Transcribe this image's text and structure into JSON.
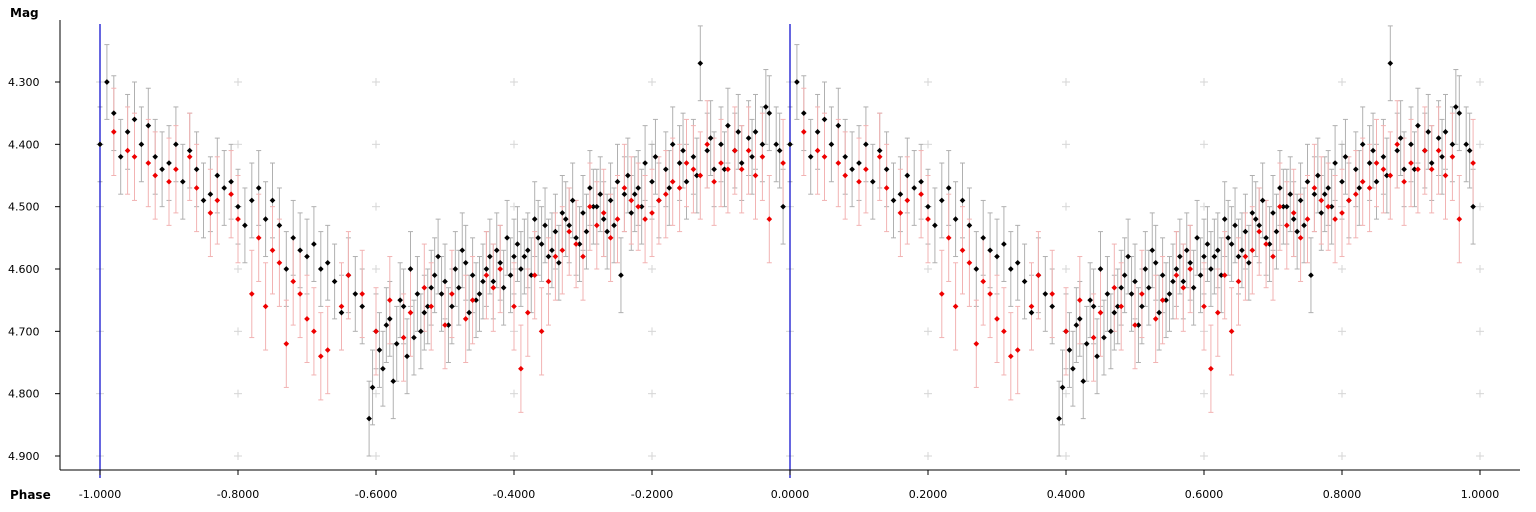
{
  "chart_data": {
    "type": "scatter",
    "title": "",
    "xlabel": "Phase",
    "ylabel": "Mag",
    "xlim": [
      -1.0,
      1.0
    ],
    "ylim": [
      4.9,
      4.3
    ],
    "y_inverted": true,
    "x_ticks": [
      "-1.0000",
      "-0.8000",
      "-0.6000",
      "-0.4000",
      "-0.2000",
      "0.0000",
      "0.2000",
      "0.4000",
      "0.6000",
      "0.8000",
      "1.0000"
    ],
    "y_ticks": [
      "4.300",
      "4.400",
      "4.500",
      "4.600",
      "4.700",
      "4.800",
      "4.900"
    ],
    "grid": "dotted crosses",
    "legend": "none",
    "vertical_markers": [
      -1.0,
      0.0
    ],
    "marker_color": "#0000cc",
    "error_bars": true,
    "series": [
      {
        "color": "#000000",
        "errorbar_color": "#b0b0b0",
        "points": [
          [
            0.0,
            4.4,
            0.06
          ],
          [
            0.02,
            4.35,
            0.06
          ],
          [
            0.04,
            4.38,
            0.06
          ],
          [
            0.06,
            4.4,
            0.06
          ],
          [
            0.08,
            4.42,
            0.06
          ],
          [
            0.1,
            4.43,
            0.06
          ],
          [
            0.12,
            4.46,
            0.06
          ],
          [
            0.14,
            4.44,
            0.06
          ],
          [
            0.16,
            4.48,
            0.06
          ],
          [
            0.18,
            4.47,
            0.06
          ],
          [
            0.2,
            4.5,
            0.06
          ],
          [
            0.22,
            4.49,
            0.06
          ],
          [
            0.24,
            4.52,
            0.06
          ],
          [
            0.26,
            4.53,
            0.06
          ],
          [
            0.28,
            4.55,
            0.06
          ],
          [
            0.3,
            4.58,
            0.06
          ],
          [
            0.32,
            4.6,
            0.06
          ],
          [
            0.34,
            4.62,
            0.06
          ],
          [
            0.36,
            4.61,
            0.06
          ],
          [
            0.38,
            4.66,
            0.06
          ],
          [
            0.4,
            4.7,
            0.06
          ],
          [
            0.42,
            4.68,
            0.06
          ],
          [
            0.44,
            4.66,
            0.06
          ],
          [
            0.46,
            4.64,
            0.06
          ],
          [
            0.48,
            4.63,
            0.06
          ],
          [
            0.5,
            4.62,
            0.06
          ],
          [
            0.52,
            4.63,
            0.06
          ],
          [
            0.54,
            4.61,
            0.06
          ],
          [
            0.56,
            4.6,
            0.06
          ],
          [
            0.58,
            4.59,
            0.06
          ],
          [
            0.6,
            4.58,
            0.06
          ],
          [
            0.62,
            4.57,
            0.06
          ],
          [
            0.64,
            4.56,
            0.06
          ],
          [
            0.66,
            4.54,
            0.06
          ],
          [
            0.68,
            4.53,
            0.06
          ],
          [
            0.7,
            4.51,
            0.06
          ],
          [
            0.72,
            4.5,
            0.06
          ],
          [
            0.74,
            4.49,
            0.06
          ],
          [
            0.76,
            4.48,
            0.06
          ],
          [
            0.78,
            4.47,
            0.06
          ],
          [
            0.8,
            4.46,
            0.06
          ],
          [
            0.82,
            4.44,
            0.06
          ],
          [
            0.84,
            4.43,
            0.06
          ],
          [
            0.86,
            4.42,
            0.06
          ],
          [
            0.88,
            4.41,
            0.06
          ],
          [
            0.9,
            4.4,
            0.06
          ],
          [
            0.92,
            4.41,
            0.06
          ],
          [
            0.94,
            4.39,
            0.06
          ],
          [
            0.96,
            4.4,
            0.06
          ],
          [
            0.98,
            4.4,
            0.06
          ],
          [
            0.01,
            4.3,
            0.06
          ],
          [
            0.05,
            4.36,
            0.06
          ],
          [
            0.09,
            4.44,
            0.06
          ],
          [
            0.13,
            4.41,
            0.06
          ],
          [
            0.17,
            4.45,
            0.06
          ],
          [
            0.21,
            4.53,
            0.06
          ],
          [
            0.25,
            4.49,
            0.06
          ],
          [
            0.29,
            4.57,
            0.06
          ],
          [
            0.33,
            4.59,
            0.06
          ],
          [
            0.37,
            4.64,
            0.06
          ],
          [
            0.39,
            4.84,
            0.06
          ],
          [
            0.41,
            4.76,
            0.06
          ],
          [
            0.43,
            4.72,
            0.06
          ],
          [
            0.45,
            4.6,
            0.06
          ],
          [
            0.47,
            4.67,
            0.06
          ],
          [
            0.49,
            4.58,
            0.06
          ],
          [
            0.51,
            4.66,
            0.06
          ],
          [
            0.53,
            4.59,
            0.06
          ],
          [
            0.55,
            4.64,
            0.06
          ],
          [
            0.57,
            4.62,
            0.06
          ],
          [
            0.59,
            4.55,
            0.06
          ],
          [
            0.61,
            4.6,
            0.06
          ],
          [
            0.63,
            4.52,
            0.06
          ],
          [
            0.65,
            4.58,
            0.06
          ],
          [
            0.67,
            4.51,
            0.06
          ],
          [
            0.69,
            4.55,
            0.06
          ],
          [
            0.71,
            4.47,
            0.06
          ],
          [
            0.73,
            4.52,
            0.06
          ],
          [
            0.75,
            4.46,
            0.06
          ],
          [
            0.77,
            4.51,
            0.06
          ],
          [
            0.79,
            4.43,
            0.06
          ],
          [
            0.81,
            4.49,
            0.06
          ],
          [
            0.83,
            4.4,
            0.06
          ],
          [
            0.85,
            4.46,
            0.06
          ],
          [
            0.87,
            4.27,
            0.06
          ],
          [
            0.89,
            4.44,
            0.06
          ],
          [
            0.91,
            4.37,
            0.06
          ],
          [
            0.93,
            4.43,
            0.06
          ],
          [
            0.95,
            4.38,
            0.06
          ],
          [
            0.97,
            4.35,
            0.06
          ],
          [
            0.99,
            4.5,
            0.06
          ],
          [
            0.03,
            4.42,
            0.06
          ],
          [
            0.07,
            4.37,
            0.06
          ],
          [
            0.11,
            4.4,
            0.06
          ],
          [
            0.15,
            4.49,
            0.06
          ],
          [
            0.19,
            4.46,
            0.06
          ],
          [
            0.23,
            4.47,
            0.06
          ],
          [
            0.27,
            4.6,
            0.06
          ],
          [
            0.31,
            4.56,
            0.06
          ],
          [
            0.35,
            4.67,
            0.06
          ],
          [
            0.445,
            4.74,
            0.06
          ],
          [
            0.465,
            4.7,
            0.06
          ],
          [
            0.485,
            4.61,
            0.06
          ],
          [
            0.505,
            4.69,
            0.06
          ],
          [
            0.525,
            4.57,
            0.06
          ],
          [
            0.545,
            4.65,
            0.06
          ],
          [
            0.565,
            4.58,
            0.06
          ],
          [
            0.585,
            4.63,
            0.06
          ],
          [
            0.605,
            4.56,
            0.06
          ],
          [
            0.625,
            4.61,
            0.06
          ],
          [
            0.645,
            4.53,
            0.06
          ],
          [
            0.665,
            4.59,
            0.06
          ],
          [
            0.685,
            4.49,
            0.06
          ],
          [
            0.705,
            4.54,
            0.06
          ],
          [
            0.725,
            4.48,
            0.06
          ],
          [
            0.745,
            4.53,
            0.06
          ],
          [
            0.765,
            4.45,
            0.06
          ],
          [
            0.785,
            4.5,
            0.06
          ],
          [
            0.805,
            4.42,
            0.06
          ],
          [
            0.825,
            4.47,
            0.06
          ],
          [
            0.845,
            4.41,
            0.06
          ],
          [
            0.865,
            4.45,
            0.06
          ],
          [
            0.885,
            4.39,
            0.06
          ],
          [
            0.905,
            4.44,
            0.06
          ],
          [
            0.925,
            4.38,
            0.06
          ],
          [
            0.945,
            4.42,
            0.06
          ],
          [
            0.965,
            4.34,
            0.06
          ],
          [
            0.985,
            4.41,
            0.06
          ],
          [
            0.395,
            4.79,
            0.06
          ],
          [
            0.405,
            4.73,
            0.06
          ],
          [
            0.415,
            4.69,
            0.06
          ],
          [
            0.425,
            4.78,
            0.06
          ],
          [
            0.435,
            4.65,
            0.06
          ],
          [
            0.455,
            4.71,
            0.06
          ],
          [
            0.475,
            4.66,
            0.06
          ],
          [
            0.495,
            4.64,
            0.06
          ],
          [
            0.515,
            4.6,
            0.06
          ],
          [
            0.535,
            4.67,
            0.06
          ],
          [
            0.555,
            4.62,
            0.06
          ],
          [
            0.575,
            4.57,
            0.06
          ],
          [
            0.595,
            4.61,
            0.06
          ],
          [
            0.615,
            4.58,
            0.06
          ],
          [
            0.635,
            4.55,
            0.06
          ],
          [
            0.655,
            4.57,
            0.06
          ],
          [
            0.675,
            4.52,
            0.06
          ],
          [
            0.695,
            4.56,
            0.06
          ],
          [
            0.715,
            4.5,
            0.06
          ],
          [
            0.735,
            4.54,
            0.06
          ],
          [
            0.755,
            4.61,
            0.06
          ],
          [
            0.775,
            4.48,
            0.06
          ]
        ]
      },
      {
        "color": "#ee0000",
        "errorbar_color": "#f2b3b3",
        "points": [
          [
            0.02,
            4.38,
            0.07
          ],
          [
            0.05,
            4.42,
            0.07
          ],
          [
            0.08,
            4.45,
            0.07
          ],
          [
            0.11,
            4.44,
            0.07
          ],
          [
            0.14,
            4.47,
            0.07
          ],
          [
            0.17,
            4.49,
            0.07
          ],
          [
            0.2,
            4.52,
            0.07
          ],
          [
            0.23,
            4.55,
            0.07
          ],
          [
            0.26,
            4.59,
            0.07
          ],
          [
            0.29,
            4.64,
            0.07
          ],
          [
            0.31,
            4.7,
            0.07
          ],
          [
            0.33,
            4.73,
            0.07
          ],
          [
            0.35,
            4.66,
            0.07
          ],
          [
            0.38,
            4.64,
            0.07
          ],
          [
            0.42,
            4.65,
            0.07
          ],
          [
            0.45,
            4.67,
            0.07
          ],
          [
            0.48,
            4.66,
            0.07
          ],
          [
            0.51,
            4.64,
            0.07
          ],
          [
            0.54,
            4.65,
            0.07
          ],
          [
            0.57,
            4.63,
            0.07
          ],
          [
            0.6,
            4.66,
            0.07
          ],
          [
            0.63,
            4.61,
            0.07
          ],
          [
            0.66,
            4.58,
            0.07
          ],
          [
            0.69,
            4.56,
            0.07
          ],
          [
            0.72,
            4.53,
            0.07
          ],
          [
            0.75,
            4.52,
            0.07
          ],
          [
            0.78,
            4.5,
            0.07
          ],
          [
            0.81,
            4.49,
            0.07
          ],
          [
            0.84,
            4.47,
            0.07
          ],
          [
            0.87,
            4.45,
            0.07
          ],
          [
            0.9,
            4.43,
            0.07
          ],
          [
            0.93,
            4.44,
            0.07
          ],
          [
            0.96,
            4.42,
            0.07
          ],
          [
            0.99,
            4.43,
            0.07
          ],
          [
            0.22,
            4.64,
            0.07
          ],
          [
            0.24,
            4.66,
            0.07
          ],
          [
            0.27,
            4.72,
            0.07
          ],
          [
            0.3,
            4.68,
            0.07
          ],
          [
            0.32,
            4.74,
            0.07
          ],
          [
            0.4,
            4.7,
            0.07
          ],
          [
            0.47,
            4.63,
            0.07
          ],
          [
            0.53,
            4.68,
            0.07
          ],
          [
            0.56,
            4.61,
            0.07
          ],
          [
            0.62,
            4.67,
            0.07
          ],
          [
            0.65,
            4.62,
            0.07
          ],
          [
            0.68,
            4.54,
            0.07
          ],
          [
            0.71,
            4.5,
            0.07
          ],
          [
            0.74,
            4.55,
            0.07
          ],
          [
            0.77,
            4.49,
            0.07
          ],
          [
            0.8,
            4.51,
            0.07
          ],
          [
            0.83,
            4.46,
            0.07
          ],
          [
            0.86,
            4.44,
            0.07
          ],
          [
            0.89,
            4.46,
            0.07
          ],
          [
            0.92,
            4.41,
            0.07
          ],
          [
            0.95,
            4.45,
            0.07
          ],
          [
            0.97,
            4.52,
            0.07
          ],
          [
            0.04,
            4.41,
            0.07
          ],
          [
            0.07,
            4.43,
            0.07
          ],
          [
            0.1,
            4.46,
            0.07
          ],
          [
            0.13,
            4.42,
            0.07
          ],
          [
            0.16,
            4.51,
            0.07
          ],
          [
            0.19,
            4.48,
            0.07
          ],
          [
            0.25,
            4.57,
            0.07
          ],
          [
            0.28,
            4.62,
            0.07
          ],
          [
            0.36,
            4.61,
            0.07
          ],
          [
            0.44,
            4.71,
            0.07
          ],
          [
            0.5,
            4.69,
            0.07
          ],
          [
            0.58,
            4.6,
            0.07
          ],
          [
            0.61,
            4.76,
            0.07
          ],
          [
            0.64,
            4.7,
            0.07
          ],
          [
            0.67,
            4.57,
            0.07
          ],
          [
            0.7,
            4.58,
            0.07
          ],
          [
            0.73,
            4.51,
            0.07
          ],
          [
            0.76,
            4.47,
            0.07
          ],
          [
            0.79,
            4.52,
            0.07
          ],
          [
            0.82,
            4.48,
            0.07
          ],
          [
            0.85,
            4.43,
            0.07
          ],
          [
            0.88,
            4.4,
            0.07
          ],
          [
            0.91,
            4.44,
            0.07
          ],
          [
            0.94,
            4.41,
            0.07
          ]
        ]
      }
    ]
  }
}
